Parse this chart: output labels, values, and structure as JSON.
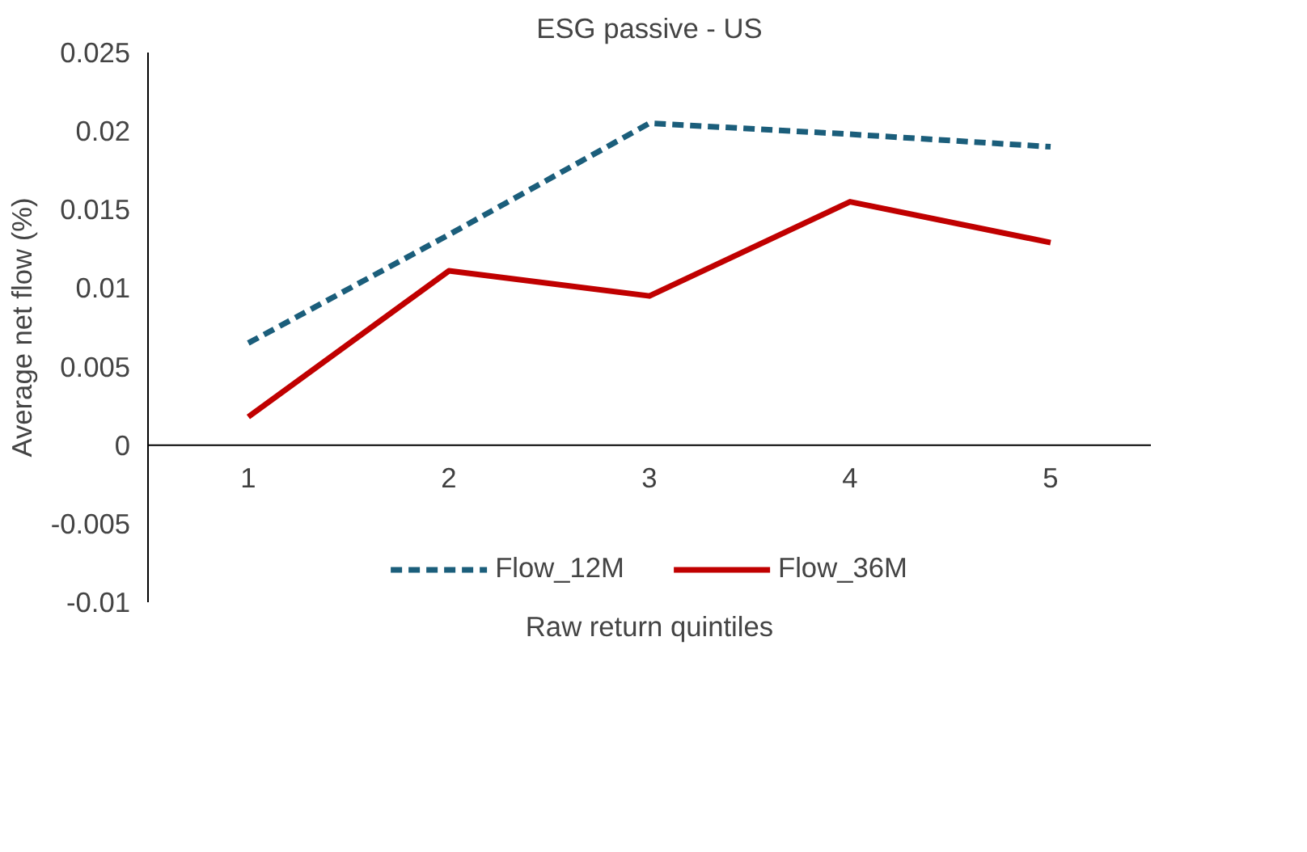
{
  "chart_data": {
    "type": "line",
    "title": "ESG passive - US",
    "xlabel": "Raw return quintiles",
    "ylabel": "Average net flow (%)",
    "categories": [
      "1",
      "2",
      "3",
      "4",
      "5"
    ],
    "series": [
      {
        "name": "Flow_12M",
        "color": "#1b5e7b",
        "line_style": "dashed",
        "values": [
          0.0065,
          0.0134,
          0.0205,
          0.0198,
          0.019
        ]
      },
      {
        "name": "Flow_36M",
        "color": "#c00000",
        "line_style": "solid",
        "values": [
          0.0018,
          0.0111,
          0.0095,
          0.0155,
          0.0129
        ]
      }
    ],
    "ylim": [
      -0.01,
      0.025
    ],
    "yticks": [
      -0.01,
      -0.005,
      0,
      0.005,
      0.01,
      0.015,
      0.02,
      0.025
    ],
    "grid": false,
    "legend": "bottom",
    "marker": "none"
  }
}
